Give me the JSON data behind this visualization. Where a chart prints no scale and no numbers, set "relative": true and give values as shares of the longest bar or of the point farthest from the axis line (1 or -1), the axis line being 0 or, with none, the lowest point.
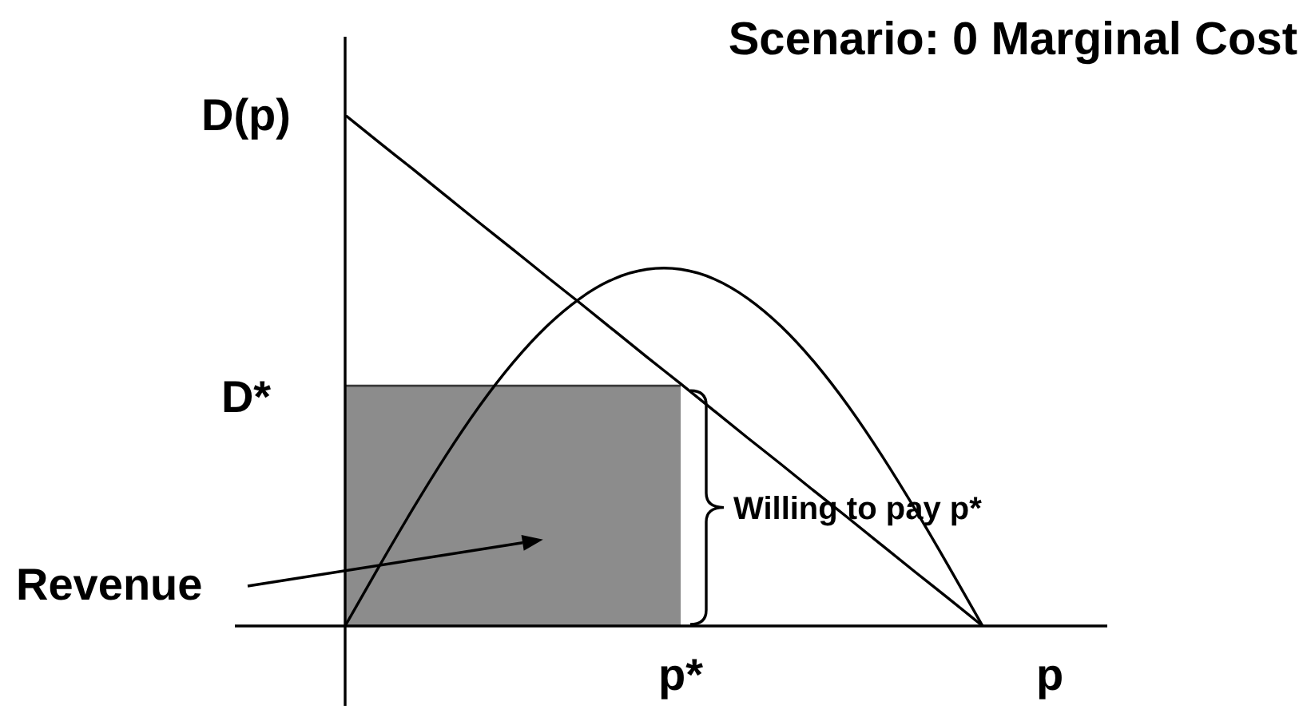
{
  "chart_data": {
    "type": "line",
    "title": "Scenario: 0 Marginal Cost",
    "relative": true,
    "categories": [
      null,
      null,
      null,
      null,
      null,
      null,
      null,
      null,
      null,
      null,
      "p*",
      null,
      null,
      null,
      null,
      null,
      null,
      null,
      null,
      null,
      null,
      "p",
      null
    ],
    "series": [
      {
        "type": "area",
        "color": "#8c8c8c",
        "values": [
          0.47,
          0.47,
          0.47,
          0.47,
          0.47,
          0.47,
          0.47,
          0.47,
          0.47,
          0.47,
          0.47,
          null,
          null,
          null,
          null,
          null,
          null,
          null,
          null,
          null,
          null,
          null,
          null
        ]
      },
      {
        "color": "#000000",
        "values": [
          1,
          0.947,
          0.895,
          0.842,
          0.789,
          0.737,
          0.684,
          0.632,
          0.579,
          0.526,
          0.474,
          0.421,
          0.368,
          0.316,
          0.263,
          0.211,
          0.158,
          0.105,
          0.053,
          0,
          null,
          null,
          null
        ]
      },
      {
        "color": "#000000",
        "values": [
          0,
          0.115,
          0.227,
          0.333,
          0.43,
          0.515,
          0.586,
          0.641,
          0.679,
          0.698,
          0.698,
          0.679,
          0.641,
          0.586,
          0.515,
          0.43,
          0.333,
          0.227,
          0.115,
          0,
          null,
          null,
          null
        ]
      }
    ],
    "annotations": [
      "D(p)",
      "D*",
      "Willing to pay p*",
      "Revenue"
    ]
  }
}
